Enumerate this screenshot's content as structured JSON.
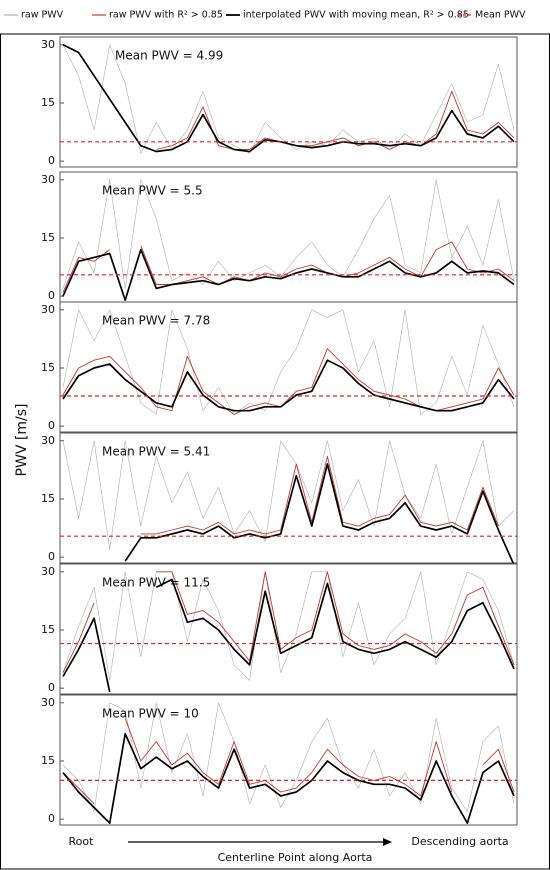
{
  "legend": [
    "raw PWV",
    "raw PWV with R² > 0.85",
    "interpolated PWV with moving mean, R² > 0.85",
    "Mean PWV"
  ],
  "y_label": "PWV [m/s]",
  "x_label": "Centerline Point along Aorta",
  "x_start_label": "Root",
  "x_end_label": "Descending aorta",
  "chart_data": [
    {
      "type": "line",
      "annotation": "Mean PWV = 4.99",
      "mean": 4.99,
      "mean_color": "#d62728",
      "ylim": [
        -1.5,
        32
      ],
      "yticks": [
        0,
        15,
        30
      ],
      "series": [
        {
          "color": "#b0b0b0",
          "values": [
            30,
            22,
            8,
            30,
            20,
            2,
            10,
            3,
            8,
            18,
            6,
            4,
            2,
            10,
            6,
            3,
            5,
            4,
            8,
            5,
            6,
            3,
            7,
            4,
            12,
            20,
            10,
            12,
            25,
            8
          ]
        },
        {
          "color": "#c0392b",
          "values": [
            null,
            null,
            null,
            null,
            null,
            null,
            3,
            4,
            6,
            14,
            4,
            3,
            3,
            6,
            5,
            4,
            4,
            5,
            6,
            4,
            5,
            3,
            5,
            4,
            7,
            18,
            8,
            7,
            10,
            6
          ]
        },
        {
          "color": "#000000",
          "values": [
            30,
            28,
            22,
            16,
            10,
            4,
            2.5,
            3,
            5,
            12,
            5,
            3,
            2.5,
            5.5,
            5,
            4,
            3.5,
            4,
            5,
            4.5,
            4.5,
            4,
            4.5,
            4,
            6,
            13,
            7,
            6,
            9,
            5
          ]
        }
      ]
    },
    {
      "type": "line",
      "annotation": "Mean PWV = 5.5",
      "mean": 5.5,
      "mean_color": "#d62728",
      "ylim": [
        -1.5,
        32
      ],
      "yticks": [
        0,
        15,
        30
      ],
      "series": [
        {
          "color": "#b0b0b0",
          "values": [
            2,
            14,
            6,
            30,
            2,
            30,
            20,
            4,
            6,
            3,
            9,
            4,
            6,
            8,
            5,
            10,
            14,
            8,
            5,
            12,
            20,
            26,
            8,
            6,
            30,
            10,
            18,
            8,
            25,
            4
          ]
        },
        {
          "color": "#c0392b",
          "values": [
            1,
            10,
            9,
            12,
            null,
            13,
            3,
            3,
            4,
            5,
            3,
            5,
            4,
            6,
            5,
            7,
            8,
            6,
            5,
            6,
            8,
            10,
            7,
            5,
            12,
            14,
            7,
            6,
            7,
            4
          ]
        },
        {
          "color": "#000000",
          "values": [
            0,
            9,
            10,
            11,
            -1,
            12,
            2,
            3,
            3.5,
            4,
            3,
            4.5,
            4,
            5,
            4.5,
            6,
            7,
            6,
            5,
            5,
            7,
            9,
            6,
            5,
            6,
            9,
            6,
            6.5,
            6,
            3
          ]
        }
      ]
    },
    {
      "type": "line",
      "annotation": "Mean PWV = 7.78",
      "mean": 7.78,
      "mean_color": "#d62728",
      "ylim": [
        -1.5,
        32
      ],
      "yticks": [
        0,
        15,
        30
      ],
      "series": [
        {
          "color": "#b0b0b0",
          "values": [
            10,
            30,
            22,
            30,
            18,
            6,
            3,
            30,
            20,
            4,
            10,
            3,
            6,
            4,
            14,
            20,
            30,
            28,
            30,
            14,
            22,
            5,
            30,
            3,
            6,
            18,
            8,
            26,
            16,
            5
          ]
        },
        {
          "color": "#c0392b",
          "values": [
            8,
            15,
            17,
            18,
            14,
            10,
            5,
            4,
            18,
            9,
            6,
            3,
            5,
            6,
            5,
            9,
            10,
            20,
            16,
            12,
            9,
            8,
            7,
            5,
            4,
            5,
            6,
            7,
            15,
            8
          ]
        },
        {
          "color": "#000000",
          "values": [
            7,
            13,
            15,
            16,
            12,
            9,
            6,
            5,
            14,
            8,
            5,
            4,
            4,
            5,
            5,
            8,
            9,
            17,
            15,
            11,
            8,
            7,
            6,
            5,
            4,
            4,
            5,
            6,
            12,
            7
          ]
        }
      ]
    },
    {
      "type": "line",
      "annotation": "Mean PWV = 5.41",
      "mean": 5.41,
      "mean_color": "#d62728",
      "ylim": [
        -1.5,
        32
      ],
      "yticks": [
        0,
        15,
        30
      ],
      "series": [
        {
          "color": "#b0b0b0",
          "values": [
            30,
            10,
            30,
            2,
            30,
            8,
            26,
            14,
            22,
            10,
            18,
            6,
            12,
            4,
            30,
            24,
            14,
            30,
            12,
            20,
            8,
            30,
            16,
            10,
            24,
            6,
            18,
            30,
            8,
            12
          ]
        },
        {
          "color": "#c0392b",
          "values": [
            null,
            null,
            null,
            null,
            null,
            6,
            6,
            7,
            8,
            7,
            9,
            6,
            7,
            6,
            7,
            24,
            9,
            26,
            9,
            8,
            10,
            11,
            16,
            9,
            8,
            9,
            7,
            18,
            8,
            null
          ]
        },
        {
          "color": "#000000",
          "values": [
            null,
            null,
            null,
            null,
            -1,
            5,
            5,
            6,
            7,
            6,
            8,
            5,
            6,
            5,
            6,
            21,
            8,
            24,
            8,
            7,
            9,
            10,
            14,
            8,
            7,
            8,
            6,
            17,
            7,
            -2
          ]
        }
      ]
    },
    {
      "type": "line",
      "annotation": "Mean PWV = 11.5",
      "mean": 11.5,
      "mean_color": "#d62728",
      "ylim": [
        -1.5,
        32
      ],
      "yticks": [
        0,
        15,
        30
      ],
      "series": [
        {
          "color": "#b0b0b0",
          "values": [
            4,
            16,
            26,
            2,
            30,
            8,
            30,
            30,
            12,
            28,
            20,
            6,
            2,
            30,
            4,
            14,
            30,
            30,
            8,
            22,
            6,
            14,
            18,
            30,
            6,
            18,
            30,
            28,
            20,
            6
          ]
        },
        {
          "color": "#c0392b",
          "values": [
            4,
            12,
            22,
            null,
            null,
            null,
            30,
            30,
            19,
            20,
            17,
            12,
            7,
            30,
            10,
            13,
            15,
            30,
            14,
            11,
            10,
            11,
            14,
            12,
            9,
            14,
            24,
            26,
            16,
            6
          ]
        },
        {
          "color": "#000000",
          "values": [
            3,
            10,
            18,
            -1,
            null,
            null,
            26,
            28,
            17,
            18,
            15,
            10,
            6,
            25,
            9,
            11,
            13,
            27,
            12,
            10,
            9,
            10,
            12,
            10,
            8,
            12,
            20,
            22,
            14,
            5
          ]
        }
      ]
    },
    {
      "type": "line",
      "annotation": "Mean PWV = 10",
      "mean": 10,
      "mean_color": "#d62728",
      "ylim": [
        -1.5,
        32
      ],
      "yticks": [
        0,
        15,
        30
      ],
      "series": [
        {
          "color": "#b0b0b0",
          "values": [
            14,
            10,
            2,
            30,
            28,
            8,
            30,
            12,
            22,
            6,
            30,
            20,
            4,
            14,
            3,
            10,
            20,
            26,
            14,
            8,
            18,
            6,
            12,
            4,
            26,
            8,
            2,
            20,
            24,
            4
          ]
        },
        {
          "color": "#c0392b",
          "values": [
            12,
            8,
            4,
            null,
            26,
            15,
            20,
            14,
            17,
            12,
            9,
            20,
            9,
            10,
            7,
            8,
            12,
            18,
            14,
            11,
            10,
            11,
            9,
            6,
            20,
            7,
            null,
            14,
            18,
            7
          ]
        },
        {
          "color": "#000000",
          "values": [
            12,
            7,
            3,
            -1,
            22,
            13,
            16,
            13,
            15,
            11,
            8,
            18,
            8,
            9,
            6,
            7,
            10,
            15,
            12,
            10,
            9,
            9,
            8,
            5,
            15,
            6,
            -1,
            12,
            15,
            6
          ]
        }
      ]
    }
  ]
}
